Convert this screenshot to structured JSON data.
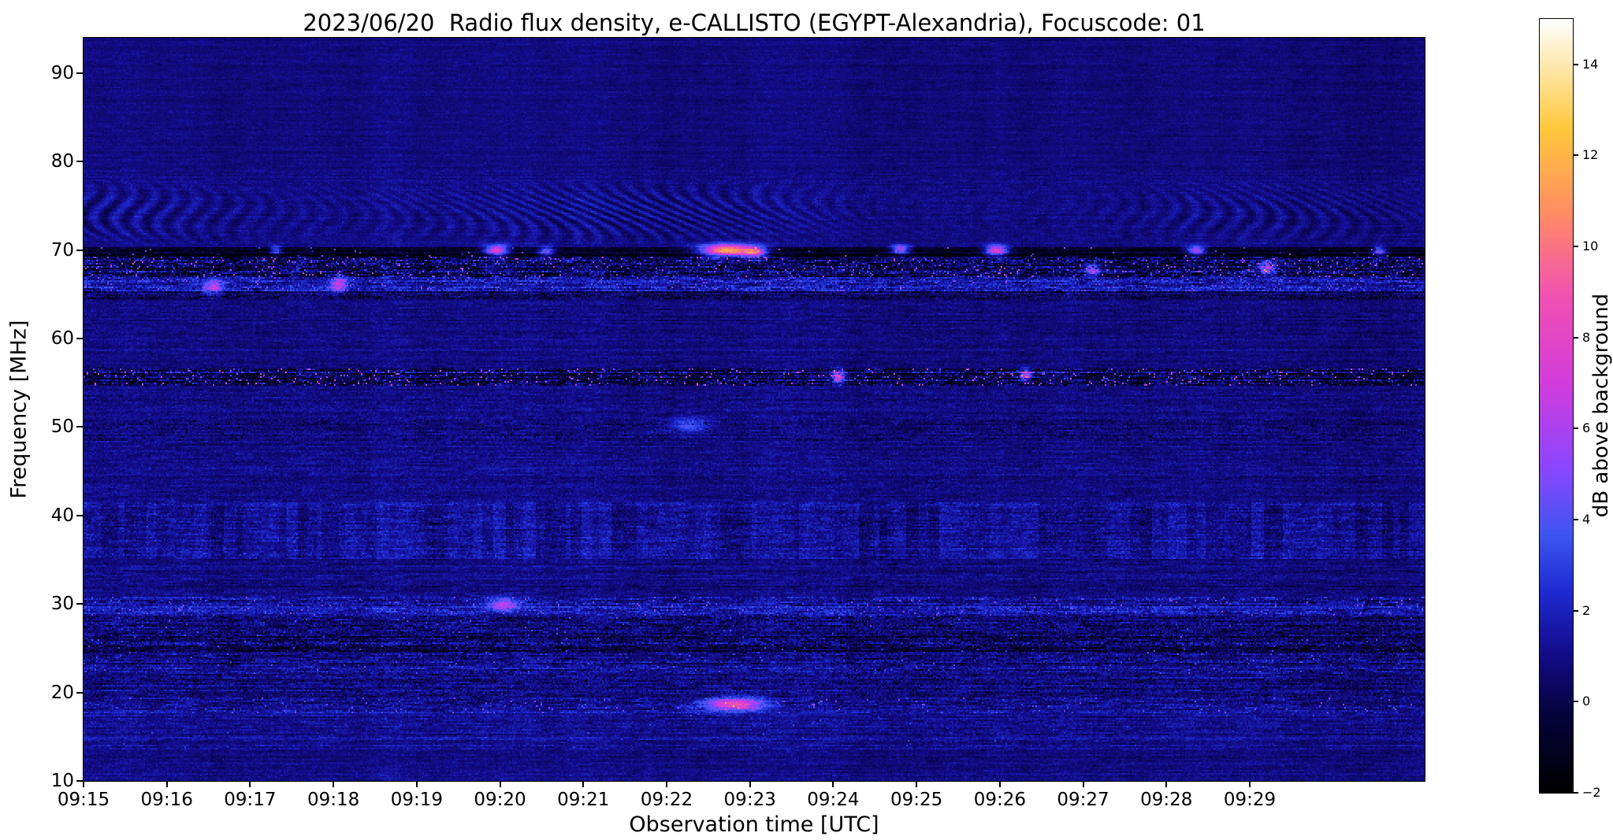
{
  "chart_data": {
    "type": "heatmap",
    "title": "2023/06/20  Radio flux density, e-CALLISTO (EGYPT-Alexandria), Focuscode: 01",
    "xlabel": "Observation time [UTC]",
    "ylabel": "Frequency [MHz]",
    "x_ticks": [
      "09:15",
      "09:16",
      "09:17",
      "09:18",
      "09:19",
      "09:20",
      "09:21",
      "09:22",
      "09:23",
      "09:24",
      "09:25",
      "09:26",
      "09:27",
      "09:28",
      "09:29"
    ],
    "x_span_minutes": 16.1,
    "ylim": [
      10,
      94
    ],
    "y_ticks": [
      90,
      80,
      70,
      60,
      50,
      40,
      30,
      20,
      10
    ],
    "grid": false,
    "colorbar": {
      "label": "dB above background",
      "ticks": [
        "14",
        "12",
        "10",
        "8",
        "6",
        "4",
        "2",
        "0",
        "−2"
      ],
      "vmin": -2,
      "vmax": 15,
      "colormap_stops": [
        [
          0.0,
          "#000000"
        ],
        [
          0.1,
          "#06033c"
        ],
        [
          0.18,
          "#130c8c"
        ],
        [
          0.26,
          "#1e2bd2"
        ],
        [
          0.33,
          "#3c55f0"
        ],
        [
          0.42,
          "#8c46ff"
        ],
        [
          0.53,
          "#d23cdc"
        ],
        [
          0.64,
          "#f050b4"
        ],
        [
          0.75,
          "#ff8c64"
        ],
        [
          0.86,
          "#ffc83c"
        ],
        [
          1.0,
          "#ffffff"
        ]
      ]
    },
    "texture": {
      "seed": 20230620,
      "cols": 851,
      "rows": 472,
      "background_level_db": 0.85,
      "bands": [
        {
          "f": [
            10,
            13.5
          ],
          "level": 0.9,
          "noise": 0.35,
          "row": 0.15,
          "dash": 0.3
        },
        {
          "f": [
            13.5,
            17.5
          ],
          "level": 1.05,
          "noise": 0.45,
          "row": 0.25,
          "dash": 0.45,
          "speckle": 0.008,
          "smax": 3
        },
        {
          "f": [
            17.5,
            19.3
          ],
          "level": 1.1,
          "noise": 0.6,
          "row": 0.3,
          "dash": 0.7,
          "speckle": 0.03,
          "smax": 5
        },
        {
          "f": [
            19.3,
            22
          ],
          "level": 0.85,
          "noise": 0.5,
          "row": 0.3,
          "dash": 0.6,
          "dark": 0.06
        },
        {
          "f": [
            22,
            24.6
          ],
          "level": 1.2,
          "noise": 0.6,
          "row": 0.35,
          "dash": 0.7,
          "speckle": 0.02,
          "smax": 4,
          "dark": 0.05
        },
        {
          "f": [
            24.6,
            26.4
          ],
          "level": 0.45,
          "noise": 0.6,
          "row": 0.35,
          "dash": 0.8,
          "dark": 0.18,
          "speckle": 0.015,
          "smax": 4
        },
        {
          "f": [
            26.4,
            28.7
          ],
          "level": 0.75,
          "noise": 0.6,
          "row": 0.3,
          "dash": 0.7,
          "dark": 0.1,
          "speckle": 0.01,
          "smax": 4
        },
        {
          "f": [
            28.7,
            30.7
          ],
          "level": 1.5,
          "noise": 0.7,
          "row": 0.3,
          "dash": 0.8,
          "speckle": 0.04,
          "smax": 5
        },
        {
          "f": [
            30.7,
            35
          ],
          "level": 0.85,
          "noise": 0.4,
          "row": 0.2,
          "dash": 0.4
        },
        {
          "f": [
            35,
            41.5
          ],
          "level": 1.15,
          "noise": 0.55,
          "row": 0.2,
          "dash": 0.5,
          "streak": 0.5
        },
        {
          "f": [
            41.5,
            48.5
          ],
          "level": 0.85,
          "noise": 0.4,
          "row": 0.15,
          "dash": 0.35
        },
        {
          "f": [
            48.5,
            51
          ],
          "level": 0.8,
          "noise": 0.45,
          "row": 0.2,
          "dash": 0.4,
          "dark": 0.03
        },
        {
          "f": [
            51,
            54.6
          ],
          "level": 0.85,
          "noise": 0.4,
          "row": 0.15,
          "dash": 0.35
        },
        {
          "f": [
            54.6,
            56.6
          ],
          "level": 0.35,
          "noise": 0.8,
          "row": 0.4,
          "dash": 1.0,
          "dark": 0.22,
          "speckle": 0.06,
          "smax": 8
        },
        {
          "f": [
            56.6,
            64.4
          ],
          "level": 0.8,
          "noise": 0.35,
          "row": 0.12,
          "dash": 0.3
        },
        {
          "f": [
            64.4,
            65.3
          ],
          "level": 0.3,
          "noise": 0.5,
          "row": 0.3,
          "dash": 0.6,
          "dark": 0.15
        },
        {
          "f": [
            65.3,
            66.9
          ],
          "level": 1.6,
          "noise": 0.8,
          "row": 0.3,
          "dash": 0.9,
          "speckle": 0.05,
          "smax": 5
        },
        {
          "f": [
            66.9,
            69.3
          ],
          "level": 0.5,
          "noise": 1.0,
          "row": 0.4,
          "dash": 1.1,
          "dark": 0.2,
          "speckle": 0.06,
          "smax": 7
        },
        {
          "f": [
            69.3,
            70.4
          ],
          "level": -1.1,
          "noise": 0.5,
          "row": 0.3,
          "dash": 0.5,
          "speckle": 0.01,
          "smax": 6
        },
        {
          "f": [
            70.4,
            79.2
          ],
          "level": 0.9,
          "noise": 0.3,
          "row": 0.1,
          "dash": 0.25
        },
        {
          "f": [
            79.2,
            94.5
          ],
          "level": 0.75,
          "noise": 0.25,
          "row": 0.08,
          "dash": 0.2
        }
      ],
      "ripple": {
        "f": [
          70.4,
          79.2
        ],
        "amp": 0.9
      },
      "hotspots": [
        {
          "t": 7.72,
          "f": 70.0,
          "st": 0.22,
          "sf": 0.45,
          "v": 13
        },
        {
          "t": 8.05,
          "f": 69.8,
          "st": 0.1,
          "sf": 0.4,
          "v": 8
        },
        {
          "t": 4.95,
          "f": 70.0,
          "st": 0.1,
          "sf": 0.4,
          "v": 9
        },
        {
          "t": 5.55,
          "f": 69.9,
          "st": 0.07,
          "sf": 0.35,
          "v": 6
        },
        {
          "t": 2.3,
          "f": 70.0,
          "st": 0.05,
          "sf": 0.35,
          "v": 5
        },
        {
          "t": 9.8,
          "f": 70.1,
          "st": 0.08,
          "sf": 0.35,
          "v": 7
        },
        {
          "t": 10.95,
          "f": 70.0,
          "st": 0.1,
          "sf": 0.4,
          "v": 9
        },
        {
          "t": 13.35,
          "f": 70.0,
          "st": 0.08,
          "sf": 0.35,
          "v": 7
        },
        {
          "t": 15.55,
          "f": 69.9,
          "st": 0.06,
          "sf": 0.35,
          "v": 6
        },
        {
          "t": 7.8,
          "f": 18.6,
          "st": 0.25,
          "sf": 0.5,
          "v": 8
        },
        {
          "t": 5.05,
          "f": 29.9,
          "st": 0.12,
          "sf": 0.5,
          "v": 5
        },
        {
          "t": 7.25,
          "f": 50.2,
          "st": 0.18,
          "sf": 0.6,
          "v": 3
        },
        {
          "t": 9.05,
          "f": 55.7,
          "st": 0.05,
          "sf": 0.5,
          "v": 7
        },
        {
          "t": 11.3,
          "f": 55.9,
          "st": 0.05,
          "sf": 0.5,
          "v": 7
        },
        {
          "t": 1.55,
          "f": 65.9,
          "st": 0.08,
          "sf": 0.6,
          "v": 5
        },
        {
          "t": 3.05,
          "f": 66.1,
          "st": 0.07,
          "sf": 0.6,
          "v": 5
        },
        {
          "t": 12.1,
          "f": 67.8,
          "st": 0.06,
          "sf": 0.5,
          "v": 6
        },
        {
          "t": 14.2,
          "f": 68.0,
          "st": 0.06,
          "sf": 0.5,
          "v": 6
        }
      ]
    }
  }
}
